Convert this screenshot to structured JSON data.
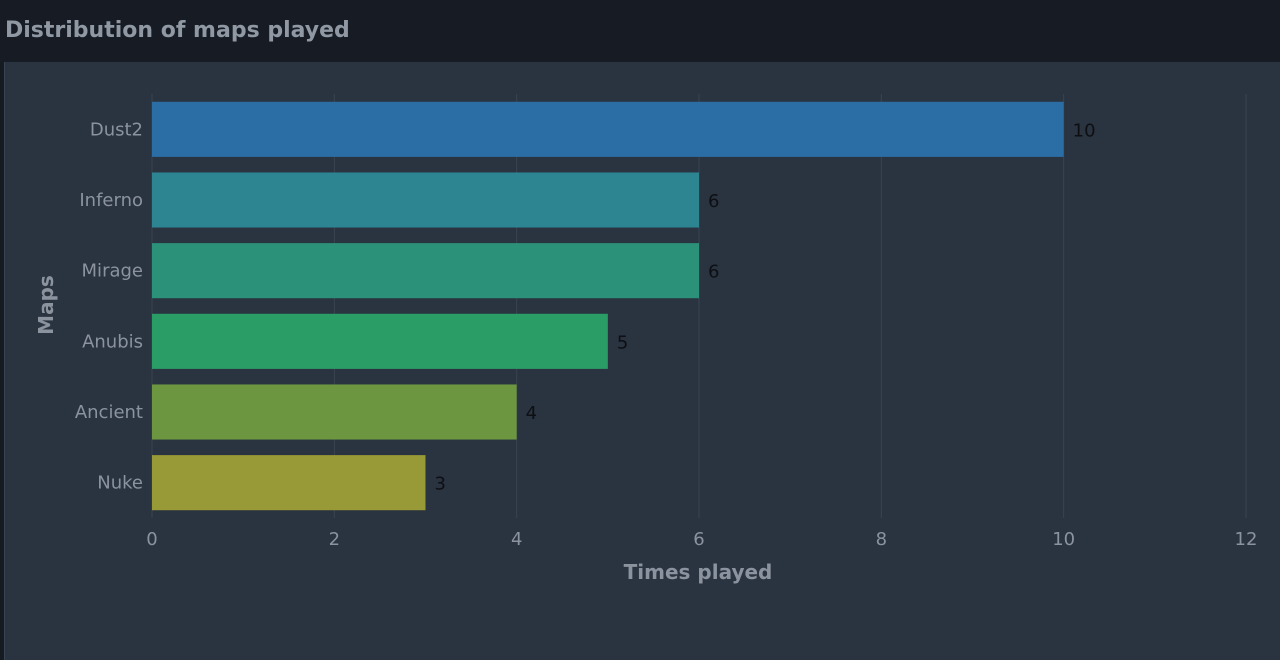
{
  "header": {
    "title": "Distribution of maps played"
  },
  "chart_data": {
    "type": "bar",
    "orientation": "horizontal",
    "categories": [
      "Dust2",
      "Inferno",
      "Mirage",
      "Anubis",
      "Ancient",
      "Nuke"
    ],
    "values": [
      10,
      6,
      6,
      5,
      4,
      3
    ],
    "colors": [
      "#2b6ea6",
      "#2c8590",
      "#2b9178",
      "#2a9d67",
      "#6c9740",
      "#979a36"
    ],
    "xlabel": "Times played",
    "ylabel": "Maps",
    "xlim": [
      0,
      12
    ],
    "xticks": [
      "0",
      "2",
      "4",
      "6",
      "8",
      "10",
      "12"
    ],
    "data_labels": [
      "10",
      "6",
      "6",
      "5",
      "4",
      "3"
    ],
    "grid": "vertical"
  }
}
